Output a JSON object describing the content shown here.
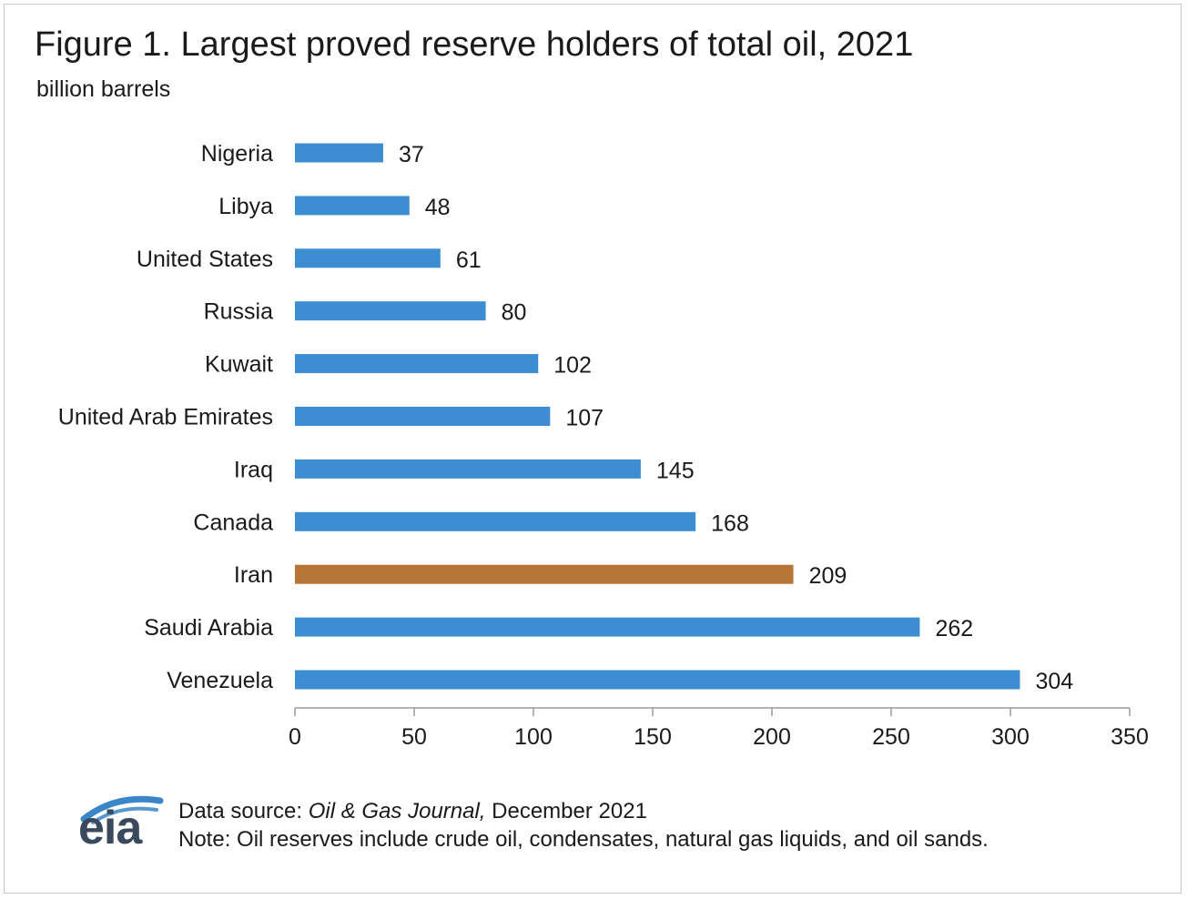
{
  "title": "Figure 1. Largest proved reserve holders of total oil, 2021",
  "subtitle": "billion barrels",
  "chart_data": {
    "type": "bar",
    "orientation": "horizontal",
    "categories": [
      "Nigeria",
      "Libya",
      "United States",
      "Russia",
      "Kuwait",
      "United Arab Emirates",
      "Iraq",
      "Canada",
      "Iran",
      "Saudi Arabia",
      "Venezuela"
    ],
    "values": [
      37,
      48,
      61,
      80,
      102,
      107,
      145,
      168,
      209,
      262,
      304
    ],
    "highlight": "Iran",
    "xlim": [
      0,
      350
    ],
    "xticks": [
      "0",
      "50",
      "100",
      "150",
      "200",
      "250",
      "300",
      "350"
    ],
    "xlabel": "",
    "ylabel": "",
    "grid": false,
    "data_labels": true,
    "colors": {
      "bar": "#3c8dd2",
      "highlight": "#b87636"
    }
  },
  "logo": {
    "text": "eia",
    "color": "#3a4a5c",
    "swoosh_color": "#3b86c8"
  },
  "footer": {
    "source_prefix": "Data source: ",
    "source_title": "Oil & Gas Journal,",
    "source_suffix": " December 2021",
    "note": "Note: Oil reserves include crude oil, condensates, natural gas liquids, and oil sands."
  }
}
